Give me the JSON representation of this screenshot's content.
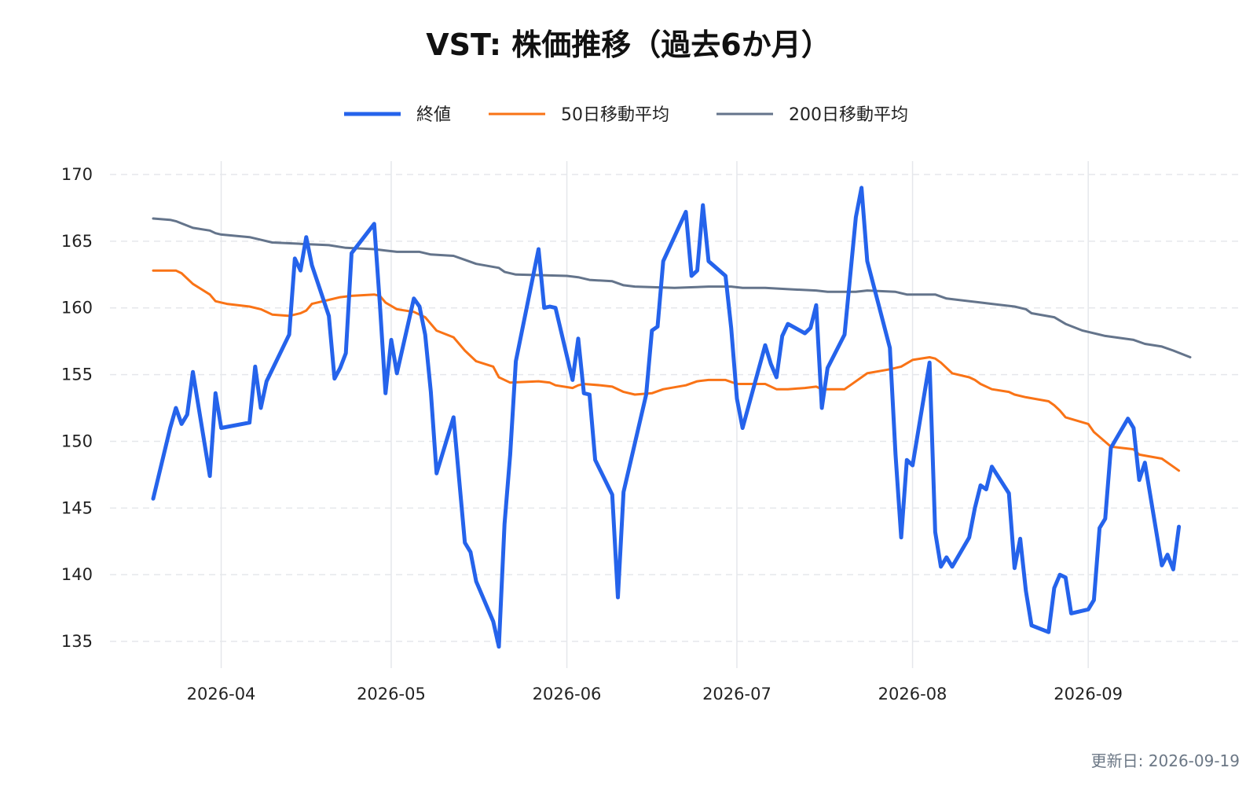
{
  "title": "VST: 株価推移（過去6か月）",
  "footer": "更新日: 2026-09-19",
  "colors": {
    "close": "#2563eb",
    "ma50": "#f97316",
    "ma200": "#64748b",
    "grid": "#e5e7eb"
  },
  "chart_data": {
    "type": "line",
    "title": "VST: 株価推移（過去6か月）",
    "xlabel": "",
    "ylabel": "",
    "ylim": [
      133,
      171
    ],
    "y_ticks": [
      135,
      140,
      145,
      150,
      155,
      160,
      165,
      170
    ],
    "x_range": [
      "2026-03-20",
      "2026-09-19"
    ],
    "x_ticks": [
      "2026-04",
      "2026-05",
      "2026-06",
      "2026-07",
      "2026-08",
      "2026-09"
    ],
    "grid": true,
    "legend_position": "top-center",
    "series": [
      {
        "name": "終値",
        "color": "#2563eb",
        "points": [
          [
            "2026-03-20",
            145.7
          ],
          [
            "2026-03-23",
            151.0
          ],
          [
            "2026-03-24",
            152.5
          ],
          [
            "2026-03-25",
            151.3
          ],
          [
            "2026-03-26",
            152.0
          ],
          [
            "2026-03-27",
            155.2
          ],
          [
            "2026-03-30",
            147.4
          ],
          [
            "2026-03-31",
            153.6
          ],
          [
            "2026-04-01",
            151.0
          ],
          [
            "2026-04-06",
            151.4
          ],
          [
            "2026-04-07",
            155.6
          ],
          [
            "2026-04-08",
            152.5
          ],
          [
            "2026-04-09",
            154.5
          ],
          [
            "2026-04-13",
            158.0
          ],
          [
            "2026-04-14",
            163.7
          ],
          [
            "2026-04-15",
            162.8
          ],
          [
            "2026-04-16",
            165.3
          ],
          [
            "2026-04-17",
            163.2
          ],
          [
            "2026-04-20",
            159.4
          ],
          [
            "2026-04-21",
            154.7
          ],
          [
            "2026-04-22",
            155.5
          ],
          [
            "2026-04-23",
            156.6
          ],
          [
            "2026-04-24",
            164.1
          ],
          [
            "2026-04-28",
            166.3
          ],
          [
            "2026-04-29",
            160.3
          ],
          [
            "2026-04-30",
            153.6
          ],
          [
            "2026-05-01",
            157.6
          ],
          [
            "2026-05-02",
            155.1
          ],
          [
            "2026-05-05",
            160.7
          ],
          [
            "2026-05-06",
            160.1
          ],
          [
            "2026-05-07",
            158.0
          ],
          [
            "2026-05-08",
            153.7
          ],
          [
            "2026-05-09",
            147.6
          ],
          [
            "2026-05-12",
            151.8
          ],
          [
            "2026-05-14",
            142.4
          ],
          [
            "2026-05-15",
            141.7
          ],
          [
            "2026-05-16",
            139.5
          ],
          [
            "2026-05-19",
            136.5
          ],
          [
            "2026-05-20",
            134.6
          ],
          [
            "2026-05-21",
            143.8
          ],
          [
            "2026-05-22",
            149.0
          ],
          [
            "2026-05-23",
            156.0
          ],
          [
            "2026-05-27",
            164.4
          ],
          [
            "2026-05-28",
            160.0
          ],
          [
            "2026-05-29",
            160.1
          ],
          [
            "2026-05-30",
            160.0
          ],
          [
            "2026-06-02",
            154.6
          ],
          [
            "2026-06-03",
            157.7
          ],
          [
            "2026-06-04",
            153.6
          ],
          [
            "2026-06-05",
            153.5
          ],
          [
            "2026-06-06",
            148.6
          ],
          [
            "2026-06-09",
            146.0
          ],
          [
            "2026-06-10",
            138.3
          ],
          [
            "2026-06-11",
            146.2
          ],
          [
            "2026-06-15",
            153.5
          ],
          [
            "2026-06-16",
            158.3
          ],
          [
            "2026-06-17",
            158.6
          ],
          [
            "2026-06-18",
            163.5
          ],
          [
            "2026-06-22",
            167.2
          ],
          [
            "2026-06-23",
            162.4
          ],
          [
            "2026-06-24",
            162.8
          ],
          [
            "2026-06-25",
            167.7
          ],
          [
            "2026-06-26",
            163.5
          ],
          [
            "2026-06-29",
            162.4
          ],
          [
            "2026-06-30",
            158.5
          ],
          [
            "2026-07-01",
            153.2
          ],
          [
            "2026-07-02",
            151.0
          ],
          [
            "2026-07-06",
            157.2
          ],
          [
            "2026-07-07",
            155.8
          ],
          [
            "2026-07-08",
            154.8
          ],
          [
            "2026-07-09",
            157.9
          ],
          [
            "2026-07-10",
            158.8
          ],
          [
            "2026-07-13",
            158.1
          ],
          [
            "2026-07-14",
            158.5
          ],
          [
            "2026-07-15",
            160.2
          ],
          [
            "2026-07-16",
            152.5
          ],
          [
            "2026-07-17",
            155.5
          ],
          [
            "2026-07-20",
            158.0
          ],
          [
            "2026-07-22",
            166.8
          ],
          [
            "2026-07-23",
            169.0
          ],
          [
            "2026-07-24",
            163.5
          ],
          [
            "2026-07-28",
            157.0
          ],
          [
            "2026-07-29",
            149.0
          ],
          [
            "2026-07-30",
            142.8
          ],
          [
            "2026-07-31",
            148.6
          ],
          [
            "2026-08-01",
            148.2
          ],
          [
            "2026-08-04",
            155.9
          ],
          [
            "2026-08-05",
            143.2
          ],
          [
            "2026-08-06",
            140.6
          ],
          [
            "2026-08-07",
            141.3
          ],
          [
            "2026-08-08",
            140.6
          ],
          [
            "2026-08-11",
            142.8
          ],
          [
            "2026-08-12",
            145.0
          ],
          [
            "2026-08-13",
            146.7
          ],
          [
            "2026-08-14",
            146.4
          ],
          [
            "2026-08-15",
            148.1
          ],
          [
            "2026-08-18",
            146.1
          ],
          [
            "2026-08-19",
            140.5
          ],
          [
            "2026-08-20",
            142.7
          ],
          [
            "2026-08-21",
            138.8
          ],
          [
            "2026-08-22",
            136.2
          ],
          [
            "2026-08-25",
            135.7
          ],
          [
            "2026-08-26",
            139.0
          ],
          [
            "2026-08-27",
            140.0
          ],
          [
            "2026-08-28",
            139.8
          ],
          [
            "2026-08-29",
            137.1
          ],
          [
            "2026-09-01",
            137.4
          ],
          [
            "2026-09-02",
            138.1
          ],
          [
            "2026-09-03",
            143.5
          ],
          [
            "2026-09-04",
            144.2
          ],
          [
            "2026-09-05",
            149.5
          ],
          [
            "2026-09-08",
            151.7
          ],
          [
            "2026-09-09",
            151.0
          ],
          [
            "2026-09-10",
            147.1
          ],
          [
            "2026-09-11",
            148.4
          ],
          [
            "2026-09-14",
            140.7
          ],
          [
            "2026-09-15",
            141.5
          ],
          [
            "2026-09-16",
            140.4
          ],
          [
            "2026-09-17",
            143.6
          ]
        ]
      },
      {
        "name": "50日移動平均",
        "color": "#f97316",
        "points": [
          [
            "2026-03-20",
            162.8
          ],
          [
            "2026-03-23",
            162.8
          ],
          [
            "2026-03-24",
            162.8
          ],
          [
            "2026-03-25",
            162.6
          ],
          [
            "2026-03-27",
            161.8
          ],
          [
            "2026-03-30",
            161.0
          ],
          [
            "2026-03-31",
            160.5
          ],
          [
            "2026-04-01",
            160.4
          ],
          [
            "2026-04-02",
            160.3
          ],
          [
            "2026-04-06",
            160.1
          ],
          [
            "2026-04-08",
            159.9
          ],
          [
            "2026-04-10",
            159.5
          ],
          [
            "2026-04-13",
            159.4
          ],
          [
            "2026-04-15",
            159.6
          ],
          [
            "2026-04-16",
            159.8
          ],
          [
            "2026-04-17",
            160.3
          ],
          [
            "2026-04-20",
            160.6
          ],
          [
            "2026-04-22",
            160.8
          ],
          [
            "2026-04-24",
            160.9
          ],
          [
            "2026-04-28",
            161.0
          ],
          [
            "2026-04-29",
            160.9
          ],
          [
            "2026-04-30",
            160.4
          ],
          [
            "2026-05-02",
            159.9
          ],
          [
            "2026-05-05",
            159.7
          ],
          [
            "2026-05-07",
            159.3
          ],
          [
            "2026-05-09",
            158.3
          ],
          [
            "2026-05-12",
            157.8
          ],
          [
            "2026-05-14",
            156.8
          ],
          [
            "2026-05-16",
            156.0
          ],
          [
            "2026-05-19",
            155.6
          ],
          [
            "2026-05-20",
            154.8
          ],
          [
            "2026-05-22",
            154.4
          ],
          [
            "2026-05-27",
            154.5
          ],
          [
            "2026-05-29",
            154.4
          ],
          [
            "2026-05-30",
            154.2
          ],
          [
            "2026-06-02",
            154.0
          ],
          [
            "2026-06-03",
            154.2
          ],
          [
            "2026-06-04",
            154.3
          ],
          [
            "2026-06-07",
            154.2
          ],
          [
            "2026-06-09",
            154.1
          ],
          [
            "2026-06-11",
            153.7
          ],
          [
            "2026-06-13",
            153.5
          ],
          [
            "2026-06-16",
            153.6
          ],
          [
            "2026-06-18",
            153.9
          ],
          [
            "2026-06-22",
            154.2
          ],
          [
            "2026-06-24",
            154.5
          ],
          [
            "2026-06-26",
            154.6
          ],
          [
            "2026-06-29",
            154.6
          ],
          [
            "2026-07-01",
            154.3
          ],
          [
            "2026-07-03",
            154.3
          ],
          [
            "2026-07-06",
            154.3
          ],
          [
            "2026-07-08",
            153.9
          ],
          [
            "2026-07-10",
            153.9
          ],
          [
            "2026-07-13",
            154.0
          ],
          [
            "2026-07-15",
            154.1
          ],
          [
            "2026-07-16",
            153.9
          ],
          [
            "2026-07-20",
            153.9
          ],
          [
            "2026-07-21",
            154.2
          ],
          [
            "2026-07-24",
            155.1
          ],
          [
            "2026-07-28",
            155.4
          ],
          [
            "2026-07-30",
            155.6
          ],
          [
            "2026-08-01",
            156.1
          ],
          [
            "2026-08-04",
            156.3
          ],
          [
            "2026-08-05",
            156.2
          ],
          [
            "2026-08-06",
            155.9
          ],
          [
            "2026-08-08",
            155.1
          ],
          [
            "2026-08-11",
            154.8
          ],
          [
            "2026-08-12",
            154.6
          ],
          [
            "2026-08-13",
            154.3
          ],
          [
            "2026-08-15",
            153.9
          ],
          [
            "2026-08-18",
            153.7
          ],
          [
            "2026-08-19",
            153.5
          ],
          [
            "2026-08-21",
            153.3
          ],
          [
            "2026-08-25",
            153.0
          ],
          [
            "2026-08-26",
            152.7
          ],
          [
            "2026-08-27",
            152.3
          ],
          [
            "2026-08-28",
            151.8
          ],
          [
            "2026-09-01",
            151.3
          ],
          [
            "2026-09-02",
            150.7
          ],
          [
            "2026-09-05",
            149.6
          ],
          [
            "2026-09-09",
            149.4
          ],
          [
            "2026-09-10",
            149.0
          ],
          [
            "2026-09-14",
            148.7
          ],
          [
            "2026-09-16",
            148.1
          ],
          [
            "2026-09-17",
            147.8
          ]
        ]
      },
      {
        "name": "200日移動平均",
        "color": "#64748b",
        "points": [
          [
            "2026-03-20",
            166.7
          ],
          [
            "2026-03-23",
            166.6
          ],
          [
            "2026-03-24",
            166.5
          ],
          [
            "2026-03-27",
            166.0
          ],
          [
            "2026-03-30",
            165.8
          ],
          [
            "2026-03-31",
            165.6
          ],
          [
            "2026-04-01",
            165.5
          ],
          [
            "2026-04-06",
            165.3
          ],
          [
            "2026-04-08",
            165.1
          ],
          [
            "2026-04-10",
            164.9
          ],
          [
            "2026-04-15",
            164.8
          ],
          [
            "2026-04-20",
            164.7
          ],
          [
            "2026-04-23",
            164.5
          ],
          [
            "2026-04-28",
            164.4
          ],
          [
            "2026-04-30",
            164.3
          ],
          [
            "2026-05-02",
            164.2
          ],
          [
            "2026-05-06",
            164.2
          ],
          [
            "2026-05-08",
            164.0
          ],
          [
            "2026-05-12",
            163.9
          ],
          [
            "2026-05-14",
            163.6
          ],
          [
            "2026-05-16",
            163.3
          ],
          [
            "2026-05-20",
            163.0
          ],
          [
            "2026-05-21",
            162.7
          ],
          [
            "2026-05-23",
            162.5
          ],
          [
            "2026-06-01",
            162.4
          ],
          [
            "2026-06-03",
            162.3
          ],
          [
            "2026-06-05",
            162.1
          ],
          [
            "2026-06-09",
            162.0
          ],
          [
            "2026-06-11",
            161.7
          ],
          [
            "2026-06-13",
            161.6
          ],
          [
            "2026-06-20",
            161.5
          ],
          [
            "2026-06-26",
            161.6
          ],
          [
            "2026-06-30",
            161.6
          ],
          [
            "2026-07-02",
            161.5
          ],
          [
            "2026-07-06",
            161.5
          ],
          [
            "2026-07-10",
            161.4
          ],
          [
            "2026-07-15",
            161.3
          ],
          [
            "2026-07-17",
            161.2
          ],
          [
            "2026-07-22",
            161.2
          ],
          [
            "2026-07-24",
            161.3
          ],
          [
            "2026-07-29",
            161.2
          ],
          [
            "2026-07-31",
            161.0
          ],
          [
            "2026-08-05",
            161.0
          ],
          [
            "2026-08-07",
            160.7
          ],
          [
            "2026-08-09",
            160.6
          ],
          [
            "2026-08-13",
            160.4
          ],
          [
            "2026-08-15",
            160.3
          ],
          [
            "2026-08-19",
            160.1
          ],
          [
            "2026-08-21",
            159.9
          ],
          [
            "2026-08-22",
            159.6
          ],
          [
            "2026-08-26",
            159.3
          ],
          [
            "2026-08-28",
            158.8
          ],
          [
            "2026-08-31",
            158.3
          ],
          [
            "2026-09-04",
            157.9
          ],
          [
            "2026-09-09",
            157.6
          ],
          [
            "2026-09-11",
            157.3
          ],
          [
            "2026-09-14",
            157.1
          ],
          [
            "2026-09-16",
            156.8
          ],
          [
            "2026-09-19",
            156.3
          ]
        ]
      }
    ]
  }
}
